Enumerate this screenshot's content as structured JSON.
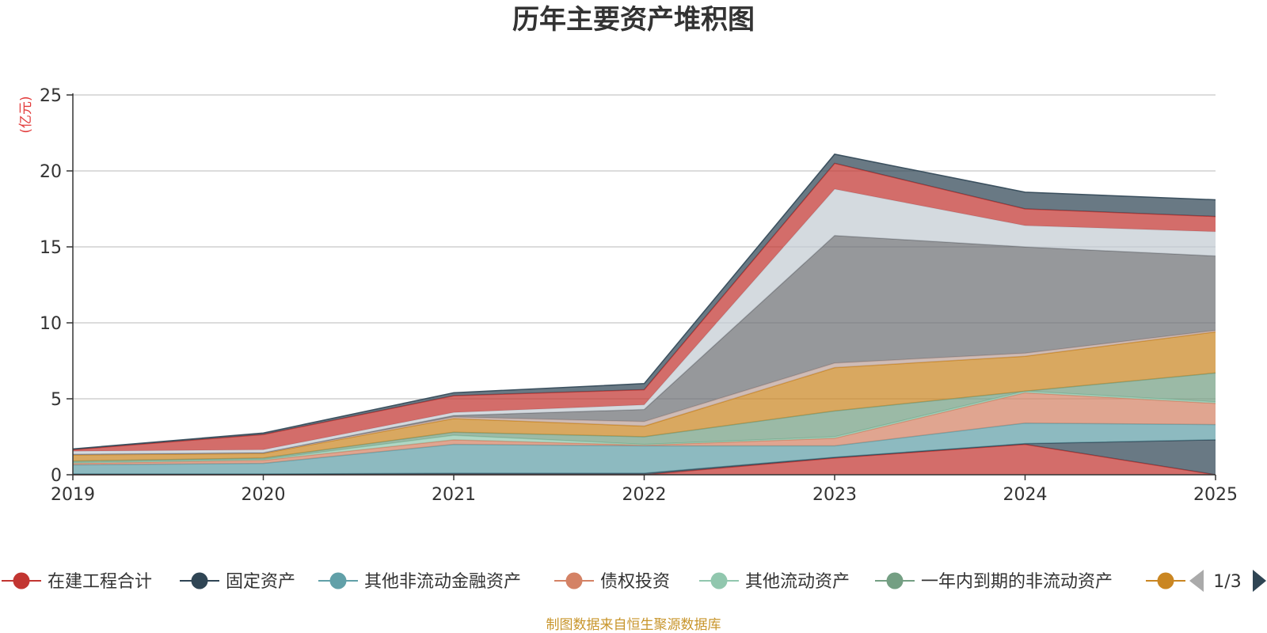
{
  "chart_data": {
    "type": "area",
    "stacked": true,
    "title": "历年主要资产堆积图",
    "unit_label": "(亿元)",
    "x": [
      "2019",
      "2020",
      "2021",
      "2022",
      "2023",
      "2024",
      "2025"
    ],
    "ylim": [
      0,
      25
    ],
    "yticks": [
      "0",
      "5",
      "10",
      "15",
      "20",
      "25"
    ],
    "grid": true,
    "legend_position": "bottom",
    "series": [
      {
        "name": "在建工程合计",
        "color": "#c23531",
        "values": [
          0,
          0,
          0,
          0,
          1.1,
          2.0,
          0
        ]
      },
      {
        "name": "固定资产",
        "color": "#2f4554",
        "values": [
          0.05,
          0.05,
          0.1,
          0.1,
          0.05,
          0.05,
          2.3
        ]
      },
      {
        "name": "其他非流动金融资产",
        "color": "#61a0a8",
        "values": [
          0.6,
          0.7,
          1.9,
          1.8,
          0.75,
          1.35,
          1.0
        ]
      },
      {
        "name": "债权投资",
        "color": "#d48265",
        "values": [
          0.1,
          0.2,
          0.3,
          0.05,
          0.5,
          2.0,
          1.4
        ]
      },
      {
        "name": "其他流动资产",
        "color": "#91c7ae",
        "values": [
          0.05,
          0.05,
          0.3,
          0.05,
          0.1,
          0.1,
          0.1
        ]
      },
      {
        "name": "一年内到期的非流动资产",
        "color": "#749f83",
        "values": [
          0.1,
          0.1,
          0.2,
          0.5,
          1.7,
          0,
          1.9
        ]
      },
      {
        "name": "",
        "color": "#ca8622",
        "values": [
          0.4,
          0.3,
          0.9,
          0.7,
          2.85,
          2.3,
          2.7
        ]
      },
      {
        "name": "",
        "color": "#bda29a",
        "values": [
          0.05,
          0.05,
          0.1,
          0.3,
          0.3,
          0.2,
          0.1
        ]
      },
      {
        "name": "",
        "color": "#6e7074",
        "values": [
          0,
          0,
          0.1,
          0.8,
          8.4,
          7.0,
          4.9
        ]
      },
      {
        "name": "",
        "color": "#c4ccd3",
        "values": [
          0.2,
          0.2,
          0.2,
          0.3,
          3.05,
          1.4,
          1.6
        ]
      },
      {
        "name": "",
        "color": "#c23531",
        "values": [
          0.1,
          1.0,
          1.1,
          1.0,
          1.7,
          1.1,
          1.0
        ]
      },
      {
        "name": "",
        "color": "#2f4554",
        "values": [
          0.05,
          0.1,
          0.2,
          0.4,
          0.6,
          1.1,
          1.1
        ]
      }
    ]
  },
  "legend": {
    "items": [
      {
        "label": "在建工程合计",
        "color": "#c23531"
      },
      {
        "label": "固定资产",
        "color": "#2f4554"
      },
      {
        "label": "其他非流动金融资产",
        "color": "#61a0a8"
      },
      {
        "label": "债权投资",
        "color": "#d48265"
      },
      {
        "label": "其他流动资产",
        "color": "#91c7ae"
      },
      {
        "label": "一年内到期的非流动资产",
        "color": "#749f83"
      },
      {
        "label": "",
        "color": "#ca8622"
      }
    ],
    "page_indicator": "1/3"
  },
  "source_note": "制图数据来自恒生聚源数据库"
}
